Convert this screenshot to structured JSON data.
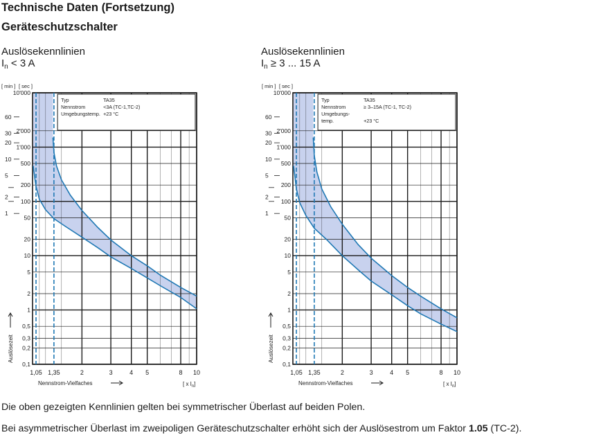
{
  "header": {
    "line1": "Technische Daten (Fortsetzung)",
    "line2": "Geräteschutzschalter"
  },
  "colors": {
    "band_fill": "#c8d2ee",
    "curve": "#1f78b4",
    "grid": "#1a1a1a",
    "text": "#1a1a1a"
  },
  "chart_data": [
    {
      "type": "area",
      "title": "Auslösekennlinien",
      "subtitle_prefix": "I",
      "subtitle_sub": "n",
      "subtitle_suffix": " < 3 A",
      "xlabel": "Nennstrom-Vielfaches",
      "xunit": "[ x I",
      "xunit_sub": "n",
      "xunit_end": "]",
      "ylabel": "Auslösezeit",
      "yunit_min": "[ min ]",
      "yunit_sec": "[ sec ]",
      "x_scale": "log",
      "y_scale": "log",
      "xlim": [
        1,
        10
      ],
      "ylim": [
        0.1,
        10000
      ],
      "x_ticks": [
        "1,05",
        "1,35",
        "2",
        "3",
        "4",
        "5",
        "8",
        "10"
      ],
      "x_tick_values": [
        1.05,
        1.35,
        2,
        3,
        4,
        5,
        8,
        10
      ],
      "y_ticks": [
        "10'000",
        "2'000",
        "1'000",
        "500",
        "200",
        "100",
        "50",
        "20",
        "10",
        "5",
        "2",
        "1",
        "0,5",
        "0,3",
        "0,2",
        "0,1"
      ],
      "y_tick_values": [
        10000,
        2000,
        1000,
        500,
        200,
        100,
        50,
        20,
        10,
        5,
        2,
        1,
        0.5,
        0.3,
        0.2,
        0.1
      ],
      "min_ticks": [
        "60",
        "30",
        "20",
        "10",
        "5",
        "2",
        "1"
      ],
      "min_tick_values": [
        3600,
        1800,
        1200,
        600,
        300,
        120,
        60
      ],
      "info": [
        [
          "Typ",
          "TA35"
        ],
        [
          "Nennstrom",
          "<3A (TC-1,TC-2)"
        ],
        [
          "Umgebungstemp.",
          "+23 °C"
        ]
      ],
      "series": [
        {
          "x": [
            1.01,
            1.03,
            1.05,
            1.1,
            1.2,
            1.35,
            1.6,
            2,
            2.5,
            3,
            4,
            5,
            6,
            8,
            10
          ],
          "y": [
            450,
            280,
            190,
            110,
            70,
            48,
            34,
            22,
            14,
            9.5,
            5.8,
            3.9,
            2.8,
            1.7,
            1.05
          ]
        },
        {
          "x": [
            1.33,
            1.35,
            1.4,
            1.5,
            1.7,
            2,
            2.5,
            3,
            4,
            5,
            6,
            8,
            10
          ],
          "y": [
            1500,
            800,
            450,
            250,
            130,
            68,
            33,
            19.5,
            10,
            6.5,
            4.4,
            2.6,
            1.8
          ]
        }
      ]
    },
    {
      "type": "area",
      "title": "Auslösekennlinien",
      "subtitle_prefix": "I",
      "subtitle_sub": "n",
      "subtitle_suffix": " ≥ 3 ... 15 A",
      "xlabel": "Nennstrom-Vielfaches",
      "xunit": "[ x I",
      "xunit_sub": "n",
      "xunit_end": "]",
      "ylabel": "Auslösezeit",
      "yunit_min": "[ min ]",
      "yunit_sec": "[ sec ]",
      "x_scale": "log",
      "y_scale": "log",
      "xlim": [
        1,
        10
      ],
      "ylim": [
        0.1,
        10000
      ],
      "x_ticks": [
        "1,05",
        "1,35",
        "2",
        "3",
        "4",
        "5",
        "8",
        "10"
      ],
      "x_tick_values": [
        1.05,
        1.35,
        2,
        3,
        4,
        5,
        8,
        10
      ],
      "y_ticks": [
        "10'000",
        "2'000",
        "1'000",
        "500",
        "200",
        "100",
        "50",
        "20",
        "10",
        "5",
        "2",
        "1",
        "0,5",
        "0,3",
        "0,2",
        "0,1"
      ],
      "y_tick_values": [
        10000,
        2000,
        1000,
        500,
        200,
        100,
        50,
        20,
        10,
        5,
        2,
        1,
        0.5,
        0.3,
        0.2,
        0.1
      ],
      "min_ticks": [
        "60",
        "30",
        "20",
        "10",
        "5",
        "2",
        "1"
      ],
      "min_tick_values": [
        3600,
        1800,
        1200,
        600,
        300,
        120,
        60
      ],
      "info": [
        [
          "Typ",
          "TA35"
        ],
        [
          "Nennstrom",
          "≥ 3–15A (TC-1, TC-2)"
        ],
        [
          "Umgebungs-",
          ""
        ],
        [
          "temp.",
          "+23 °C"
        ]
      ],
      "series": [
        {
          "x": [
            1.01,
            1.03,
            1.05,
            1.1,
            1.2,
            1.35,
            1.6,
            2,
            2.5,
            3,
            4,
            5,
            6,
            8,
            10
          ],
          "y": [
            450,
            280,
            170,
            95,
            55,
            32,
            20,
            10,
            5.5,
            3.4,
            1.9,
            1.2,
            0.85,
            0.55,
            0.4
          ]
        },
        {
          "x": [
            1.33,
            1.35,
            1.4,
            1.5,
            1.7,
            2,
            2.5,
            3,
            4,
            5,
            6,
            8,
            10
          ],
          "y": [
            1500,
            700,
            350,
            170,
            80,
            38,
            16,
            9,
            4.3,
            2.6,
            1.8,
            1.05,
            0.72
          ]
        }
      ]
    }
  ],
  "footer": {
    "line1": "Die oben gezeigten Kennlinien gelten bei symmetrischer Überlast auf beiden Polen.",
    "line2_pre": "Bei asymmetrischer Überlast im zweipoligen Geräteschutzschalter erhöht sich der Auslösestrom um Faktor ",
    "line2_bold": "1.05",
    "line2_post": " (TC-2)."
  }
}
